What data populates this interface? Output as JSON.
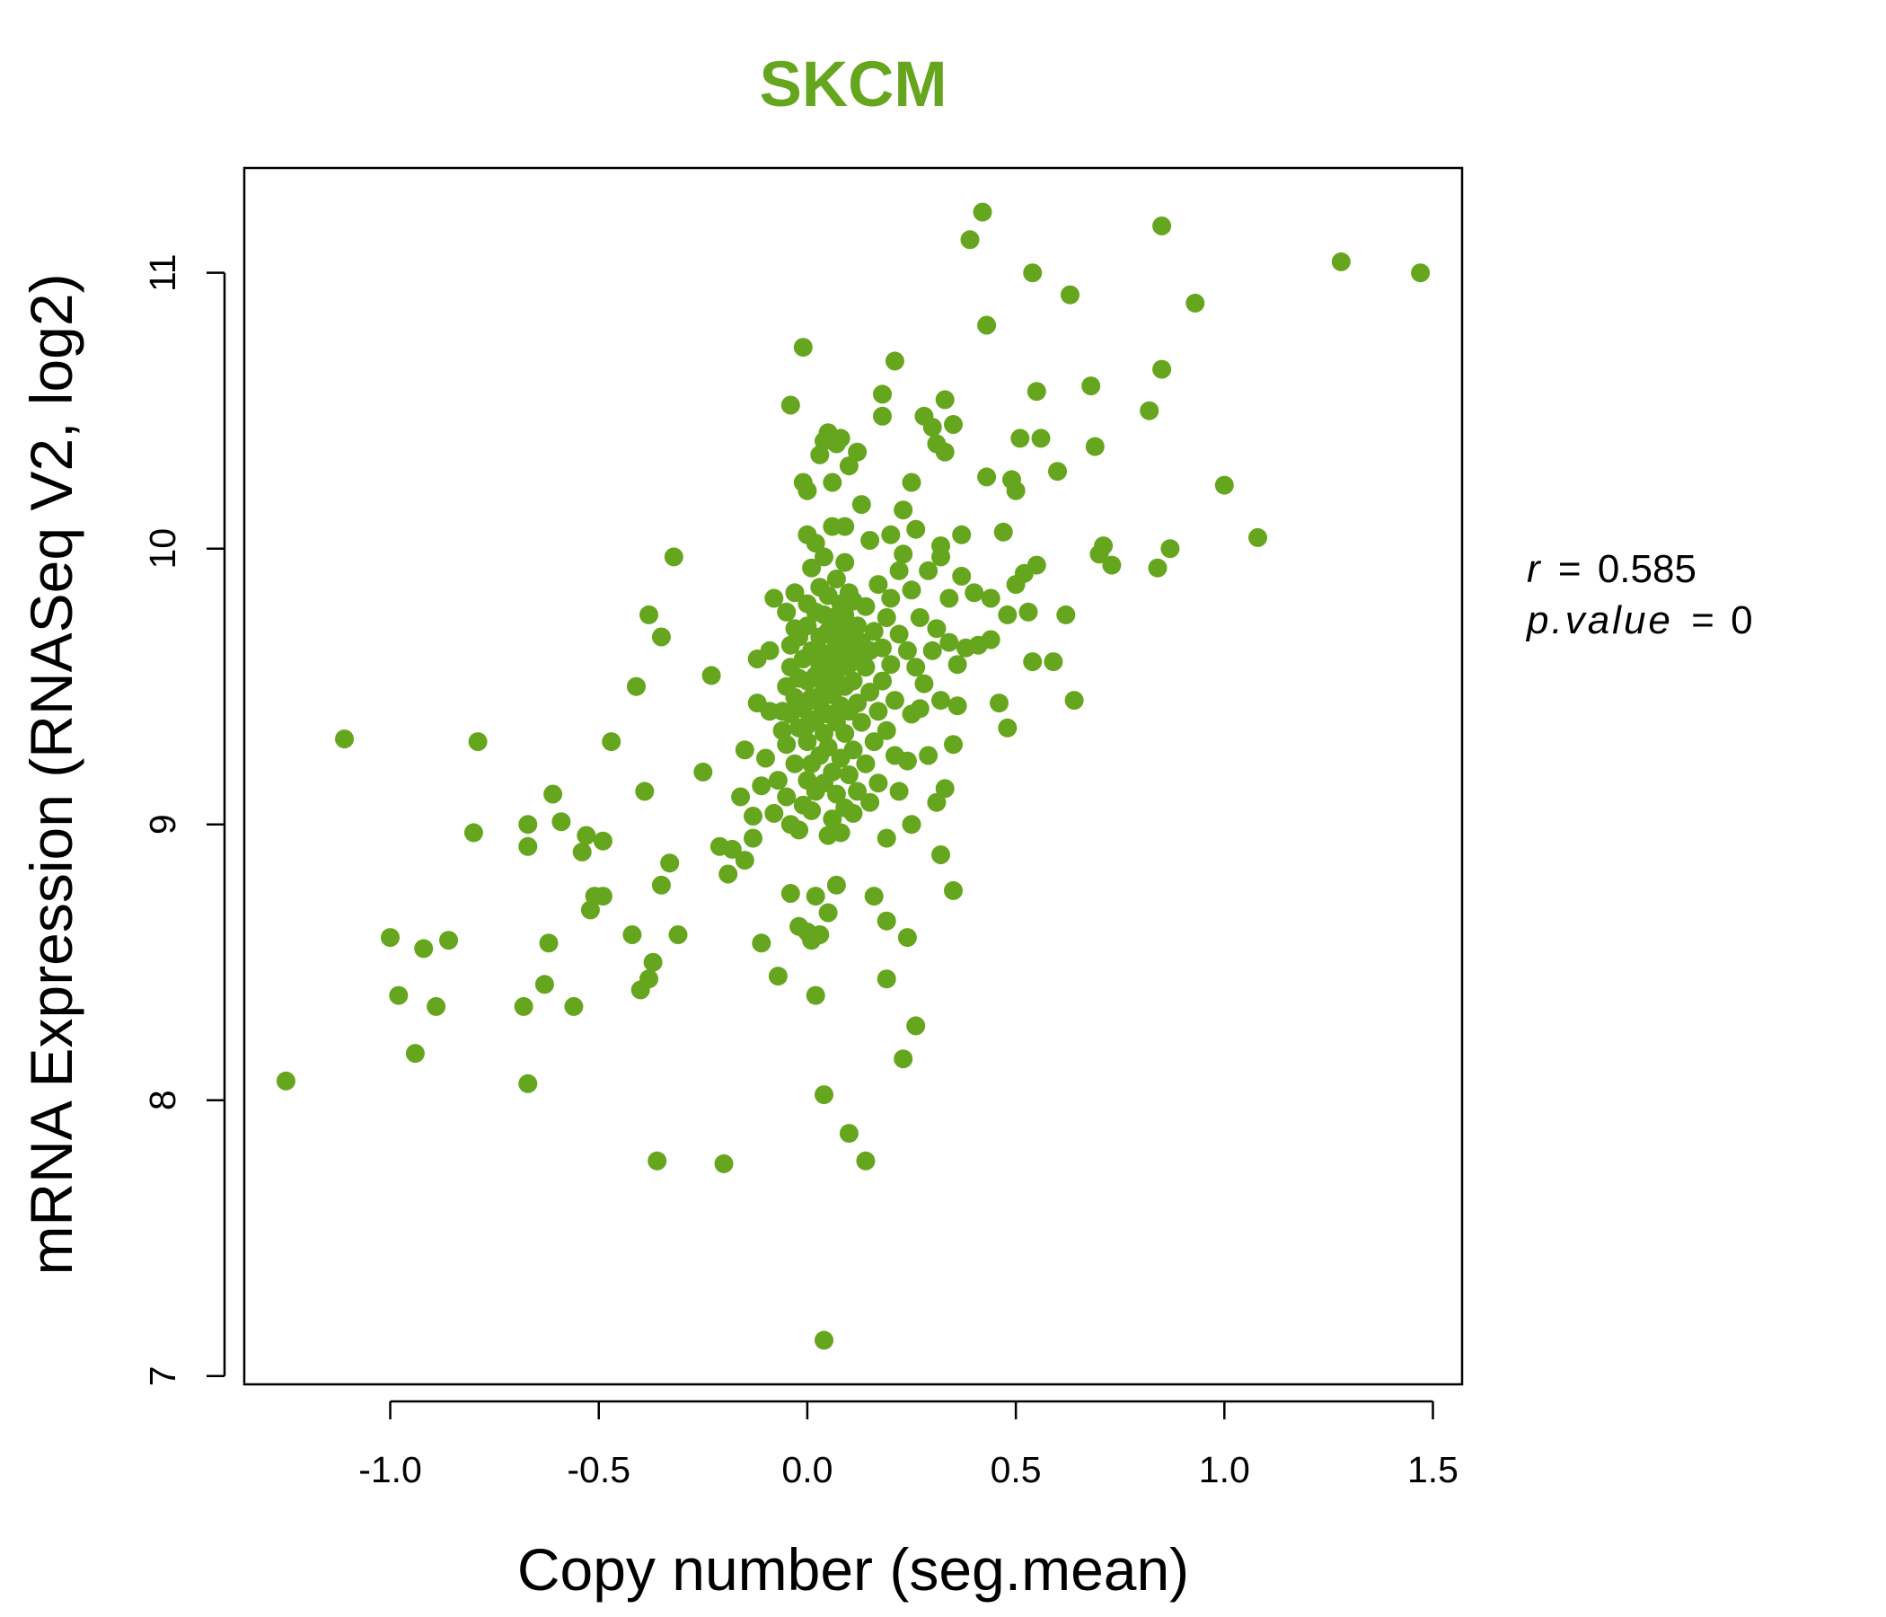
{
  "accent_color": "#66A61E",
  "stats": {
    "r_symbol": "r",
    "r_value": "0.585",
    "p_symbol": "p.value",
    "p_value": "0",
    "equals": "="
  },
  "chart_data": {
    "type": "scatter",
    "title": "SKCM",
    "xlabel": "Copy number (seg.mean)",
    "ylabel": "mRNA Expression (RNASeq V2, log2)",
    "xlim": [
      -1.35,
      1.57
    ],
    "ylim": [
      6.97,
      11.38
    ],
    "x_ticks": [
      -1.0,
      -0.5,
      0.0,
      0.5,
      1.0,
      1.5
    ],
    "x_tick_labels": [
      "-1.0",
      "-0.5",
      "0.0",
      "0.5",
      "1.0",
      "1.5"
    ],
    "y_ticks": [
      7,
      8,
      9,
      10,
      11
    ],
    "y_tick_labels": [
      "7",
      "8",
      "9",
      "10",
      "11"
    ],
    "grid": false,
    "points": [
      [
        -1.25,
        8.07
      ],
      [
        -1.11,
        9.31
      ],
      [
        -1.0,
        8.59
      ],
      [
        -0.98,
        8.38
      ],
      [
        -0.94,
        8.17
      ],
      [
        -0.92,
        8.55
      ],
      [
        -0.89,
        8.34
      ],
      [
        -0.86,
        8.58
      ],
      [
        -0.8,
        8.97
      ],
      [
        -0.79,
        9.3
      ],
      [
        -0.68,
        8.34
      ],
      [
        -0.67,
        9.0
      ],
      [
        -0.67,
        8.06
      ],
      [
        -0.67,
        8.92
      ],
      [
        -0.63,
        8.42
      ],
      [
        -0.62,
        8.57
      ],
      [
        -0.61,
        9.11
      ],
      [
        -0.59,
        9.01
      ],
      [
        -0.56,
        8.34
      ],
      [
        -0.54,
        8.9
      ],
      [
        -0.53,
        8.96
      ],
      [
        -0.52,
        8.69
      ],
      [
        -0.51,
        8.74
      ],
      [
        -0.49,
        8.74
      ],
      [
        -0.49,
        8.94
      ],
      [
        -0.47,
        9.3
      ],
      [
        -0.42,
        8.6
      ],
      [
        -0.41,
        9.5
      ],
      [
        -0.4,
        8.4
      ],
      [
        -0.39,
        9.12
      ],
      [
        -0.38,
        8.44
      ],
      [
        -0.38,
        9.76
      ],
      [
        -0.37,
        8.5
      ],
      [
        -0.36,
        7.78
      ],
      [
        -0.35,
        9.68
      ],
      [
        -0.35,
        8.78
      ],
      [
        -0.33,
        8.86
      ],
      [
        -0.32,
        9.97
      ],
      [
        -0.31,
        8.6
      ],
      [
        -0.25,
        9.19
      ],
      [
        -0.23,
        9.54
      ],
      [
        -0.21,
        8.92
      ],
      [
        -0.2,
        7.77
      ],
      [
        -0.19,
        8.82
      ],
      [
        -0.18,
        8.91
      ],
      [
        -0.16,
        9.1
      ],
      [
        -0.15,
        9.27
      ],
      [
        -0.15,
        8.87
      ],
      [
        -0.13,
        8.95
      ],
      [
        -0.13,
        9.03
      ],
      [
        -0.12,
        9.6
      ],
      [
        -0.12,
        9.44
      ],
      [
        -0.11,
        8.57
      ],
      [
        -0.11,
        9.14
      ],
      [
        -0.1,
        9.24
      ],
      [
        -0.09,
        9.41
      ],
      [
        -0.09,
        9.63
      ],
      [
        -0.08,
        9.82
      ],
      [
        -0.08,
        9.04
      ],
      [
        -0.07,
        9.16
      ],
      [
        -0.07,
        8.45
      ],
      [
        -0.06,
        9.41
      ],
      [
        -0.06,
        9.34
      ],
      [
        -0.05,
        9.1
      ],
      [
        -0.05,
        9.77
      ],
      [
        -0.05,
        9.5
      ],
      [
        -0.05,
        9.29
      ],
      [
        -0.04,
        8.75
      ],
      [
        -0.04,
        9.57
      ],
      [
        -0.04,
        9.65
      ],
      [
        -0.04,
        9.4
      ],
      [
        -0.04,
        9.0
      ],
      [
        -0.04,
        10.52
      ],
      [
        -0.03,
        9.84
      ],
      [
        -0.03,
        9.46
      ],
      [
        -0.03,
        9.22
      ],
      [
        -0.03,
        9.71
      ],
      [
        -0.02,
        9.53
      ],
      [
        -0.02,
        8.63
      ],
      [
        -0.02,
        9.35
      ],
      [
        -0.02,
        8.98
      ],
      [
        -0.02,
        9.68
      ],
      [
        -0.01,
        9.42
      ],
      [
        -0.01,
        9.07
      ],
      [
        -0.01,
        9.6
      ],
      [
        -0.01,
        10.24
      ],
      [
        -0.01,
        10.73
      ],
      [
        0.0,
        9.8
      ],
      [
        0.0,
        9.36
      ],
      [
        0.0,
        9.16
      ],
      [
        0.0,
        10.05
      ],
      [
        0.0,
        9.72
      ],
      [
        0.0,
        8.61
      ],
      [
        0.0,
        9.52
      ],
      [
        0.0,
        9.3
      ],
      [
        0.0,
        10.21
      ],
      [
        0.01,
        9.46
      ],
      [
        0.01,
        9.63
      ],
      [
        0.01,
        8.58
      ],
      [
        0.01,
        9.22
      ],
      [
        0.01,
        9.93
      ],
      [
        0.01,
        9.05
      ],
      [
        0.02,
        9.38
      ],
      [
        0.02,
        9.77
      ],
      [
        0.02,
        9.54
      ],
      [
        0.02,
        9.12
      ],
      [
        0.02,
        10.02
      ],
      [
        0.02,
        8.38
      ],
      [
        0.02,
        8.74
      ],
      [
        0.03,
        9.58
      ],
      [
        0.03,
        9.44
      ],
      [
        0.03,
        9.68
      ],
      [
        0.03,
        9.25
      ],
      [
        0.03,
        10.34
      ],
      [
        0.03,
        8.6
      ],
      [
        0.03,
        9.86
      ],
      [
        0.04,
        9.49
      ],
      [
        0.04,
        9.62
      ],
      [
        0.04,
        9.33
      ],
      [
        0.04,
        9.76
      ],
      [
        0.04,
        9.15
      ],
      [
        0.04,
        8.02
      ],
      [
        0.04,
        7.13
      ],
      [
        0.04,
        10.39
      ],
      [
        0.04,
        9.97
      ],
      [
        0.05,
        9.55
      ],
      [
        0.05,
        9.7
      ],
      [
        0.05,
        9.4
      ],
      [
        0.05,
        9.83
      ],
      [
        0.05,
        9.28
      ],
      [
        0.05,
        10.42
      ],
      [
        0.05,
        8.96
      ],
      [
        0.05,
        8.68
      ],
      [
        0.06,
        9.61
      ],
      [
        0.06,
        9.47
      ],
      [
        0.06,
        9.75
      ],
      [
        0.06,
        9.19
      ],
      [
        0.06,
        10.24
      ],
      [
        0.06,
        9.02
      ],
      [
        0.06,
        10.08
      ],
      [
        0.07,
        9.52
      ],
      [
        0.07,
        9.66
      ],
      [
        0.07,
        9.37
      ],
      [
        0.07,
        9.89
      ],
      [
        0.07,
        9.11
      ],
      [
        0.07,
        10.38
      ],
      [
        0.07,
        8.78
      ],
      [
        0.08,
        9.57
      ],
      [
        0.08,
        9.72
      ],
      [
        0.08,
        9.43
      ],
      [
        0.08,
        9.8
      ],
      [
        0.08,
        9.24
      ],
      [
        0.08,
        10.4
      ],
      [
        0.08,
        8.97
      ],
      [
        0.09,
        9.62
      ],
      [
        0.09,
        9.5
      ],
      [
        0.09,
        9.76
      ],
      [
        0.09,
        9.33
      ],
      [
        0.09,
        10.08
      ],
      [
        0.09,
        9.95
      ],
      [
        0.09,
        9.06
      ],
      [
        0.1,
        9.58
      ],
      [
        0.1,
        9.69
      ],
      [
        0.1,
        9.41
      ],
      [
        0.1,
        9.84
      ],
      [
        0.1,
        9.18
      ],
      [
        0.1,
        7.88
      ],
      [
        0.1,
        10.3
      ],
      [
        0.11,
        9.65
      ],
      [
        0.11,
        9.52
      ],
      [
        0.11,
        9.81
      ],
      [
        0.11,
        9.27
      ],
      [
        0.11,
        9.04
      ],
      [
        0.12,
        9.6
      ],
      [
        0.12,
        9.72
      ],
      [
        0.12,
        9.44
      ],
      [
        0.12,
        10.35
      ],
      [
        0.12,
        9.12
      ],
      [
        0.13,
        9.66
      ],
      [
        0.13,
        9.37
      ],
      [
        0.13,
        10.16
      ],
      [
        0.14,
        9.57
      ],
      [
        0.14,
        9.79
      ],
      [
        0.14,
        9.22
      ],
      [
        0.14,
        7.78
      ],
      [
        0.15,
        9.63
      ],
      [
        0.15,
        9.48
      ],
      [
        0.15,
        10.03
      ],
      [
        0.15,
        9.08
      ],
      [
        0.16,
        9.7
      ],
      [
        0.16,
        9.3
      ],
      [
        0.16,
        8.74
      ],
      [
        0.17,
        9.41
      ],
      [
        0.17,
        9.87
      ],
      [
        0.17,
        9.15
      ],
      [
        0.18,
        9.64
      ],
      [
        0.18,
        9.52
      ],
      [
        0.18,
        10.48
      ],
      [
        0.18,
        10.56
      ],
      [
        0.19,
        9.75
      ],
      [
        0.19,
        9.34
      ],
      [
        0.19,
        8.95
      ],
      [
        0.19,
        8.65
      ],
      [
        0.19,
        8.44
      ],
      [
        0.2,
        9.58
      ],
      [
        0.2,
        10.05
      ],
      [
        0.2,
        9.82
      ],
      [
        0.21,
        9.45
      ],
      [
        0.21,
        9.25
      ],
      [
        0.21,
        10.68
      ],
      [
        0.22,
        9.69
      ],
      [
        0.22,
        9.92
      ],
      [
        0.22,
        9.12
      ],
      [
        0.23,
        8.15
      ],
      [
        0.23,
        9.98
      ],
      [
        0.23,
        10.14
      ],
      [
        0.24,
        9.63
      ],
      [
        0.24,
        9.23
      ],
      [
        0.24,
        8.59
      ],
      [
        0.25,
        9.4
      ],
      [
        0.25,
        10.24
      ],
      [
        0.25,
        9.85
      ],
      [
        0.25,
        9.0
      ],
      [
        0.26,
        9.57
      ],
      [
        0.26,
        10.07
      ],
      [
        0.26,
        8.27
      ],
      [
        0.27,
        9.75
      ],
      [
        0.27,
        9.42
      ],
      [
        0.28,
        10.48
      ],
      [
        0.28,
        9.51
      ],
      [
        0.29,
        9.25
      ],
      [
        0.29,
        9.92
      ],
      [
        0.3,
        10.44
      ],
      [
        0.3,
        9.63
      ],
      [
        0.31,
        9.08
      ],
      [
        0.31,
        9.71
      ],
      [
        0.31,
        10.38
      ],
      [
        0.32,
        9.97
      ],
      [
        0.32,
        9.45
      ],
      [
        0.32,
        8.89
      ],
      [
        0.32,
        10.01
      ],
      [
        0.33,
        10.54
      ],
      [
        0.33,
        9.13
      ],
      [
        0.33,
        10.35
      ],
      [
        0.34,
        9.66
      ],
      [
        0.34,
        9.82
      ],
      [
        0.35,
        9.29
      ],
      [
        0.35,
        10.45
      ],
      [
        0.35,
        8.76
      ],
      [
        0.36,
        9.58
      ],
      [
        0.36,
        9.43
      ],
      [
        0.37,
        10.05
      ],
      [
        0.37,
        9.9
      ],
      [
        0.38,
        9.64
      ],
      [
        0.39,
        11.12
      ],
      [
        0.4,
        9.84
      ],
      [
        0.41,
        9.65
      ],
      [
        0.42,
        11.22
      ],
      [
        0.43,
        10.81
      ],
      [
        0.43,
        10.26
      ],
      [
        0.44,
        9.67
      ],
      [
        0.44,
        9.82
      ],
      [
        0.46,
        9.44
      ],
      [
        0.47,
        10.06
      ],
      [
        0.48,
        9.35
      ],
      [
        0.48,
        9.76
      ],
      [
        0.49,
        10.25
      ],
      [
        0.5,
        10.21
      ],
      [
        0.5,
        9.87
      ],
      [
        0.51,
        10.4
      ],
      [
        0.52,
        9.91
      ],
      [
        0.53,
        9.77
      ],
      [
        0.54,
        11.0
      ],
      [
        0.54,
        9.59
      ],
      [
        0.55,
        10.57
      ],
      [
        0.55,
        9.94
      ],
      [
        0.56,
        10.4
      ],
      [
        0.59,
        9.59
      ],
      [
        0.6,
        10.28
      ],
      [
        0.62,
        9.76
      ],
      [
        0.63,
        10.92
      ],
      [
        0.64,
        9.45
      ],
      [
        0.68,
        10.59
      ],
      [
        0.69,
        10.37
      ],
      [
        0.7,
        9.98
      ],
      [
        0.71,
        10.01
      ],
      [
        0.73,
        9.94
      ],
      [
        0.82,
        10.5
      ],
      [
        0.84,
        9.93
      ],
      [
        0.85,
        10.65
      ],
      [
        0.85,
        11.17
      ],
      [
        0.87,
        10.0
      ],
      [
        0.93,
        10.89
      ],
      [
        1.0,
        10.23
      ],
      [
        1.08,
        10.04
      ],
      [
        1.28,
        11.04
      ],
      [
        1.47,
        11.0
      ]
    ]
  }
}
